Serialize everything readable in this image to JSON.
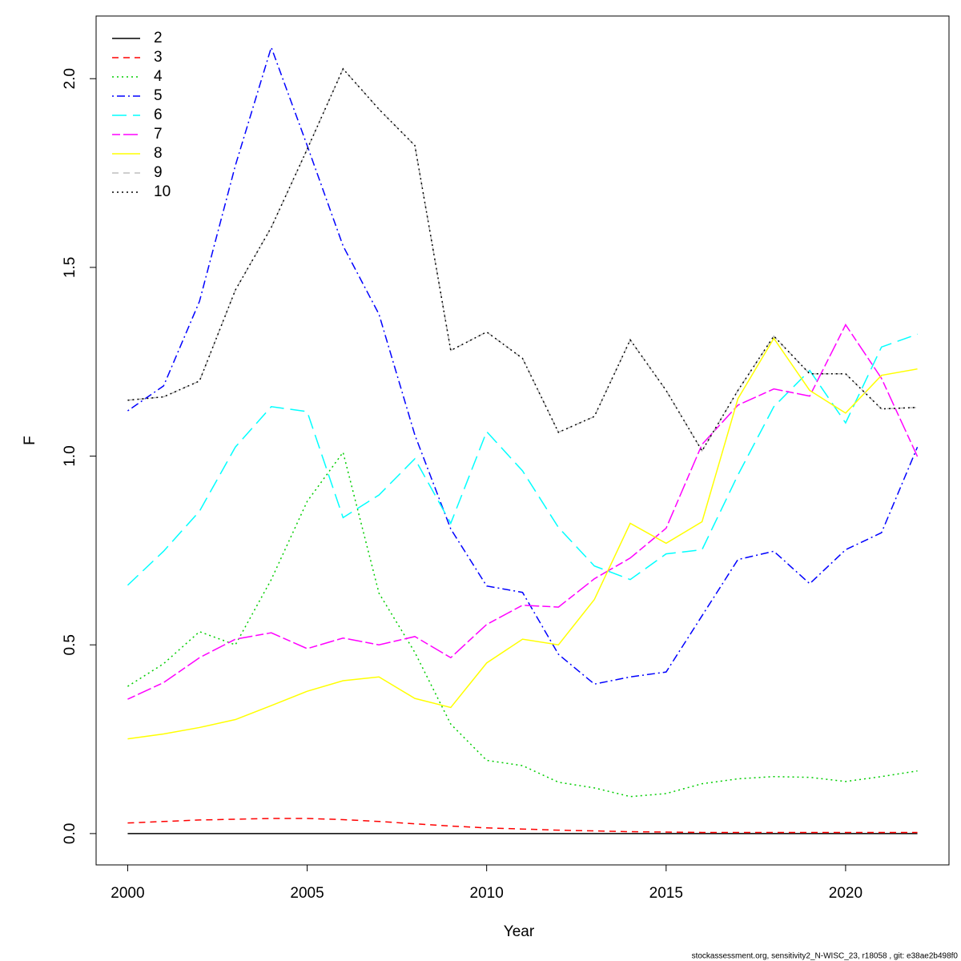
{
  "chart_data": {
    "type": "line",
    "xlabel": "Year",
    "ylabel": "F",
    "x": [
      2000,
      2001,
      2002,
      2003,
      2004,
      2005,
      2006,
      2007,
      2008,
      2009,
      2010,
      2011,
      2012,
      2013,
      2014,
      2015,
      2016,
      2017,
      2018,
      2019,
      2020,
      2021,
      2022
    ],
    "xlim": [
      1999.12,
      2022.88
    ],
    "xticks": [
      2000,
      2005,
      2010,
      2015,
      2020
    ],
    "ylim": [
      -0.083,
      2.166
    ],
    "yticks": [
      {
        "value": 0,
        "label": "0.0"
      },
      {
        "value": 0.5,
        "label": "0.5"
      },
      {
        "value": 1,
        "label": "1.0"
      },
      {
        "value": 1.5,
        "label": "1.5"
      },
      {
        "value": 2,
        "label": "2.0"
      }
    ],
    "legend": "top-left",
    "series": [
      {
        "name": "2",
        "color": "#000000",
        "dash": "solid",
        "values": [
          0,
          0,
          0,
          0,
          0,
          0,
          0,
          0,
          0,
          0,
          0,
          0,
          0,
          0,
          0,
          0,
          0,
          0,
          0,
          0,
          0,
          0,
          0
        ]
      },
      {
        "name": "3",
        "color": "#ff0000",
        "dash": "dashed",
        "values": [
          0.028,
          0.032,
          0.036,
          0.038,
          0.04,
          0.04,
          0.037,
          0.032,
          0.026,
          0.02,
          0.015,
          0.012,
          0.009,
          0.007,
          0.005,
          0.004,
          0.003,
          0.003,
          0.003,
          0.003,
          0.003,
          0.003,
          0.003
        ]
      },
      {
        "name": "4",
        "color": "#00cd00",
        "dash": "dotted",
        "values": [
          0.39,
          0.45,
          0.535,
          0.5,
          0.673,
          0.88,
          1.01,
          0.637,
          0.48,
          0.29,
          0.194,
          0.18,
          0.136,
          0.121,
          0.098,
          0.106,
          0.132,
          0.145,
          0.151,
          0.149,
          0.138,
          0.151,
          0.166
        ]
      },
      {
        "name": "5",
        "color": "#0000ff",
        "dash": "dotdash",
        "values": [
          1.12,
          1.186,
          1.41,
          1.77,
          2.083,
          1.823,
          1.557,
          1.376,
          1.056,
          0.807,
          0.656,
          0.639,
          0.475,
          0.396,
          0.415,
          0.428,
          0.577,
          0.726,
          0.748,
          0.662,
          0.752,
          0.797,
          1.024
        ]
      },
      {
        "name": "6",
        "color": "#00ffff",
        "dash": "longdash",
        "values": [
          0.658,
          0.748,
          0.854,
          1.024,
          1.131,
          1.118,
          0.837,
          0.897,
          0.993,
          0.822,
          1.065,
          0.961,
          0.811,
          0.709,
          0.673,
          0.741,
          0.752,
          0.95,
          1.131,
          1.227,
          1.088,
          1.289,
          1.323
        ]
      },
      {
        "name": "7",
        "color": "#ff00ff",
        "dash": "twodash",
        "values": [
          0.356,
          0.4,
          0.466,
          0.515,
          0.532,
          0.49,
          0.518,
          0.5,
          0.522,
          0.466,
          0.554,
          0.605,
          0.6,
          0.675,
          0.73,
          0.809,
          1.031,
          1.135,
          1.178,
          1.159,
          1.348,
          1.206,
          0.999
        ]
      },
      {
        "name": "8",
        "color": "#ffff00",
        "dash": "solid",
        "values": [
          0.251,
          0.264,
          0.281,
          0.302,
          0.339,
          0.377,
          0.405,
          0.415,
          0.358,
          0.334,
          0.452,
          0.515,
          0.5,
          0.62,
          0.822,
          0.769,
          0.826,
          1.152,
          1.312,
          1.174,
          1.114,
          1.214,
          1.231
        ]
      },
      {
        "name": "9",
        "color": "#bebebe",
        "dash": "dashed",
        "values": [
          1.148,
          1.157,
          1.199,
          1.44,
          1.606,
          1.813,
          2.026,
          1.919,
          1.823,
          1.28,
          1.329,
          1.259,
          1.063,
          1.105,
          1.308,
          1.174,
          1.014,
          1.174,
          1.318,
          1.218,
          1.218,
          1.125,
          1.129
        ]
      },
      {
        "name": "10",
        "color": "#000000",
        "dash": "dotted",
        "values": [
          1.148,
          1.157,
          1.199,
          1.44,
          1.606,
          1.813,
          2.026,
          1.919,
          1.823,
          1.28,
          1.329,
          1.259,
          1.063,
          1.105,
          1.308,
          1.174,
          1.014,
          1.174,
          1.318,
          1.218,
          1.218,
          1.125,
          1.129
        ]
      }
    ],
    "footnote": "stockassessment.org, sensitivity2_N-WISC_23, r18058 , git: e38ae2b498f0"
  }
}
